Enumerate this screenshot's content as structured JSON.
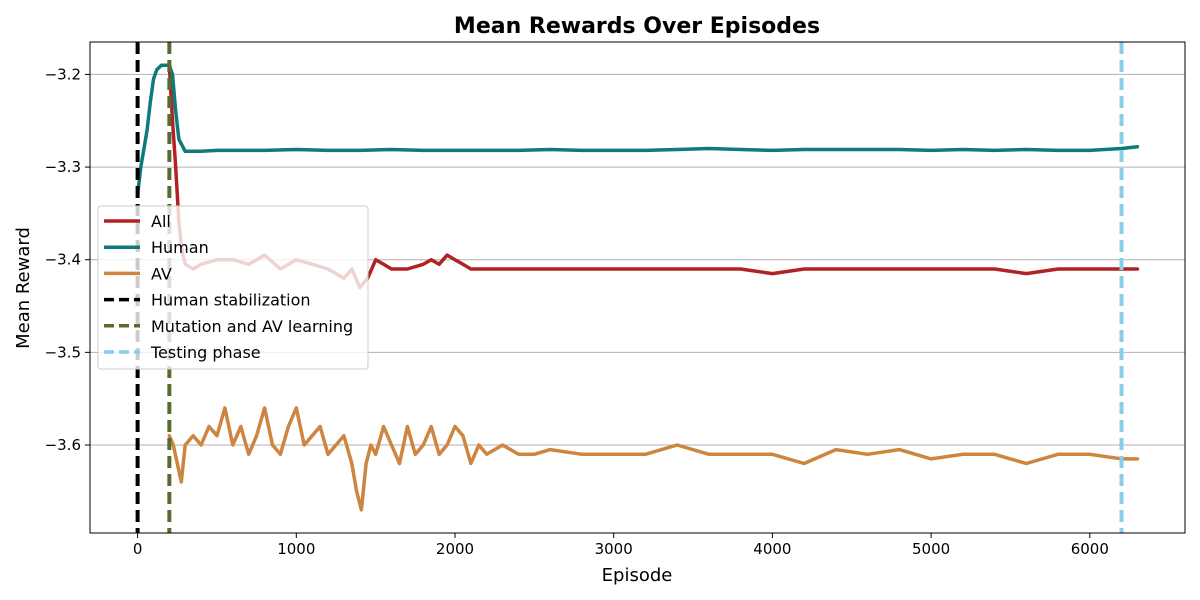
{
  "chart_data": {
    "type": "line",
    "title": "Mean Rewards Over Episodes",
    "xlabel": "Episode",
    "ylabel": "Mean Reward",
    "xlim": [
      -300,
      6600
    ],
    "ylim": [
      -3.695,
      -3.165
    ],
    "xticks": [
      0,
      1000,
      2000,
      3000,
      4000,
      5000,
      6000
    ],
    "yticks": [
      -3.2,
      -3.3,
      -3.4,
      -3.5,
      -3.6
    ],
    "ytick_labels": [
      "−3.2",
      "−3.3",
      "−3.4",
      "−3.5",
      "−3.6"
    ],
    "grid": "horizontal",
    "legend_position": "center-left",
    "series": [
      {
        "name": "All",
        "color": "#b22222",
        "x": [
          200,
          220,
          240,
          260,
          280,
          300,
          350,
          400,
          500,
          600,
          700,
          800,
          900,
          1000,
          1100,
          1200,
          1300,
          1350,
          1400,
          1450,
          1500,
          1550,
          1600,
          1700,
          1800,
          1850,
          1900,
          1950,
          2000,
          2050,
          2100,
          2200,
          2400,
          2600,
          2800,
          3000,
          3200,
          3400,
          3600,
          3800,
          4000,
          4200,
          4400,
          4600,
          4800,
          5000,
          5200,
          5400,
          5600,
          5800,
          6000,
          6200,
          6300
        ],
        "y": [
          -3.19,
          -3.25,
          -3.3,
          -3.36,
          -3.39,
          -3.405,
          -3.41,
          -3.405,
          -3.4,
          -3.4,
          -3.405,
          -3.395,
          -3.41,
          -3.4,
          -3.405,
          -3.41,
          -3.42,
          -3.41,
          -3.43,
          -3.42,
          -3.4,
          -3.405,
          -3.41,
          -3.41,
          -3.405,
          -3.4,
          -3.405,
          -3.395,
          -3.4,
          -3.405,
          -3.41,
          -3.41,
          -3.41,
          -3.41,
          -3.41,
          -3.41,
          -3.41,
          -3.41,
          -3.41,
          -3.41,
          -3.415,
          -3.41,
          -3.41,
          -3.41,
          -3.41,
          -3.41,
          -3.41,
          -3.41,
          -3.415,
          -3.41,
          -3.41,
          -3.41,
          -3.41
        ]
      },
      {
        "name": "Human",
        "color": "#0f7a7a",
        "x": [
          0,
          20,
          40,
          60,
          80,
          100,
          120,
          150,
          180,
          200,
          220,
          240,
          260,
          300,
          400,
          500,
          600,
          800,
          1000,
          1200,
          1400,
          1600,
          1800,
          2000,
          2200,
          2400,
          2600,
          2800,
          3000,
          3200,
          3400,
          3600,
          3800,
          4000,
          4200,
          4400,
          4600,
          4800,
          5000,
          5200,
          5400,
          5600,
          5800,
          6000,
          6200,
          6300
        ],
        "y": [
          -3.33,
          -3.3,
          -3.28,
          -3.26,
          -3.23,
          -3.205,
          -3.195,
          -3.19,
          -3.19,
          -3.19,
          -3.2,
          -3.24,
          -3.27,
          -3.283,
          -3.283,
          -3.282,
          -3.282,
          -3.282,
          -3.281,
          -3.282,
          -3.282,
          -3.281,
          -3.282,
          -3.282,
          -3.282,
          -3.282,
          -3.281,
          -3.282,
          -3.282,
          -3.282,
          -3.281,
          -3.28,
          -3.281,
          -3.282,
          -3.281,
          -3.281,
          -3.281,
          -3.281,
          -3.282,
          -3.281,
          -3.282,
          -3.281,
          -3.282,
          -3.282,
          -3.28,
          -3.278
        ]
      },
      {
        "name": "AV",
        "color": "#cd853f",
        "x": [
          200,
          225,
          250,
          275,
          300,
          350,
          400,
          450,
          500,
          550,
          600,
          650,
          700,
          750,
          800,
          850,
          900,
          950,
          1000,
          1050,
          1100,
          1150,
          1200,
          1250,
          1300,
          1350,
          1380,
          1410,
          1440,
          1470,
          1500,
          1550,
          1600,
          1650,
          1700,
          1750,
          1800,
          1850,
          1900,
          1950,
          2000,
          2050,
          2100,
          2150,
          2200,
          2300,
          2400,
          2500,
          2600,
          2800,
          3000,
          3200,
          3400,
          3600,
          3800,
          4000,
          4200,
          4400,
          4600,
          4800,
          5000,
          5200,
          5400,
          5600,
          5800,
          6000,
          6200,
          6300
        ],
        "y": [
          -3.59,
          -3.6,
          -3.62,
          -3.64,
          -3.6,
          -3.59,
          -3.6,
          -3.58,
          -3.59,
          -3.56,
          -3.6,
          -3.58,
          -3.61,
          -3.59,
          -3.56,
          -3.6,
          -3.61,
          -3.58,
          -3.56,
          -3.6,
          -3.59,
          -3.58,
          -3.61,
          -3.6,
          -3.59,
          -3.62,
          -3.65,
          -3.67,
          -3.62,
          -3.6,
          -3.61,
          -3.58,
          -3.6,
          -3.62,
          -3.58,
          -3.61,
          -3.6,
          -3.58,
          -3.61,
          -3.6,
          -3.58,
          -3.59,
          -3.62,
          -3.6,
          -3.61,
          -3.6,
          -3.61,
          -3.61,
          -3.605,
          -3.61,
          -3.61,
          -3.61,
          -3.6,
          -3.61,
          -3.61,
          -3.61,
          -3.62,
          -3.605,
          -3.61,
          -3.605,
          -3.615,
          -3.61,
          -3.61,
          -3.62,
          -3.61,
          -3.61,
          -3.615,
          -3.615
        ]
      }
    ],
    "vlines": [
      {
        "name": "Human stabilization",
        "x": 0,
        "color": "#000000"
      },
      {
        "name": "Mutation and AV learning",
        "x": 200,
        "color": "#556b2f"
      },
      {
        "name": "Testing phase",
        "x": 6200,
        "color": "#87ceeb"
      }
    ]
  }
}
